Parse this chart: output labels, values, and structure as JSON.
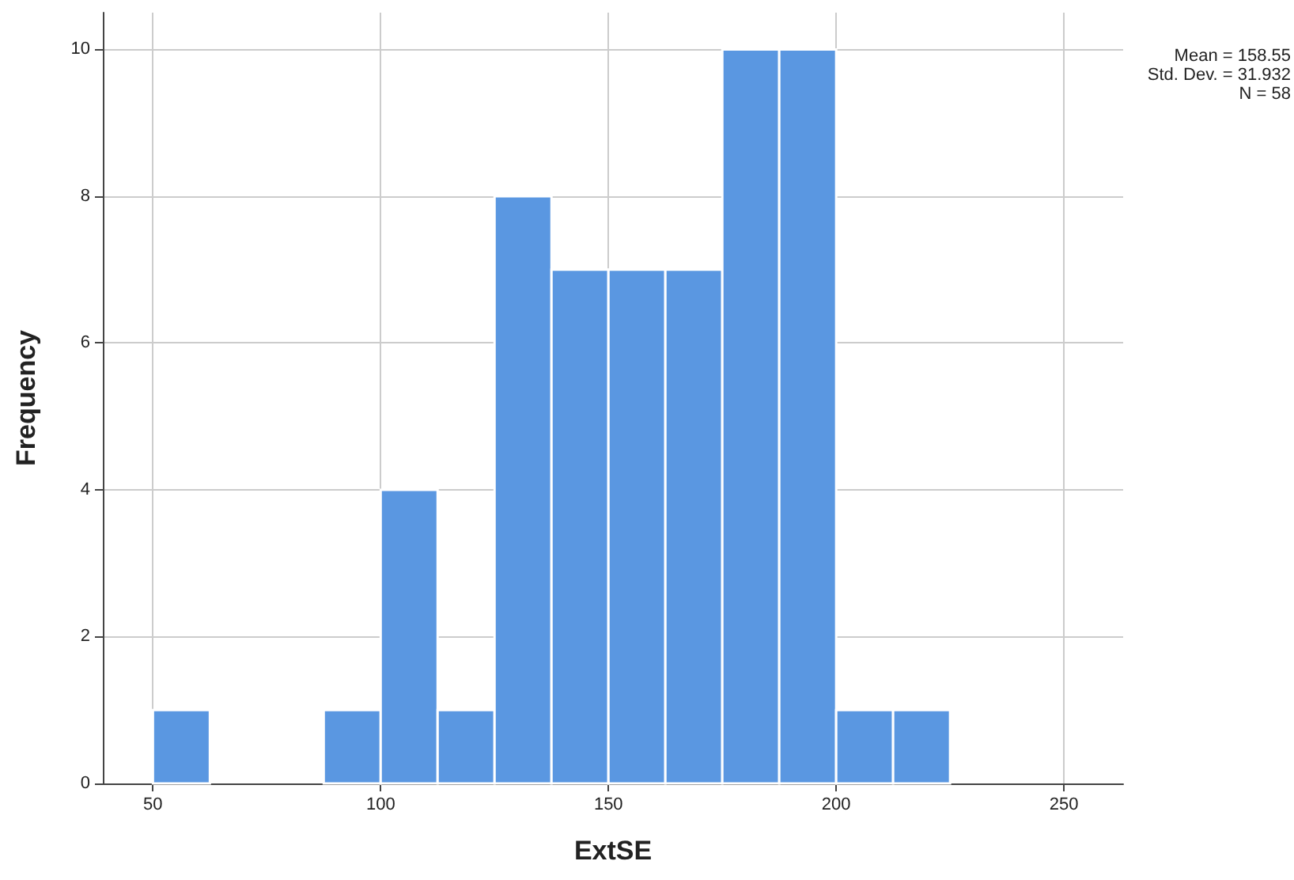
{
  "chart_data": {
    "type": "histogram",
    "xlabel": "ExtSE",
    "ylabel": "Frequency",
    "bins": [
      50,
      62.5,
      75,
      87.5,
      100,
      112.5,
      125,
      137.5,
      150,
      162.5,
      175,
      187.5,
      200,
      212.5,
      225
    ],
    "values": [
      1,
      0,
      0,
      1,
      4,
      1,
      8,
      7,
      7,
      7,
      10,
      10,
      1,
      1
    ],
    "color": "#5a97e1",
    "xlim": [
      39,
      263
    ],
    "xticks": [
      50,
      100,
      150,
      200,
      250
    ],
    "ylim": [
      0,
      10.5
    ],
    "yticks": [
      0,
      2,
      4,
      6,
      8,
      10
    ],
    "grid": true,
    "annotations": [
      "Mean = 158.55",
      "Std. Dev. = 31.932",
      "N = 58"
    ]
  }
}
